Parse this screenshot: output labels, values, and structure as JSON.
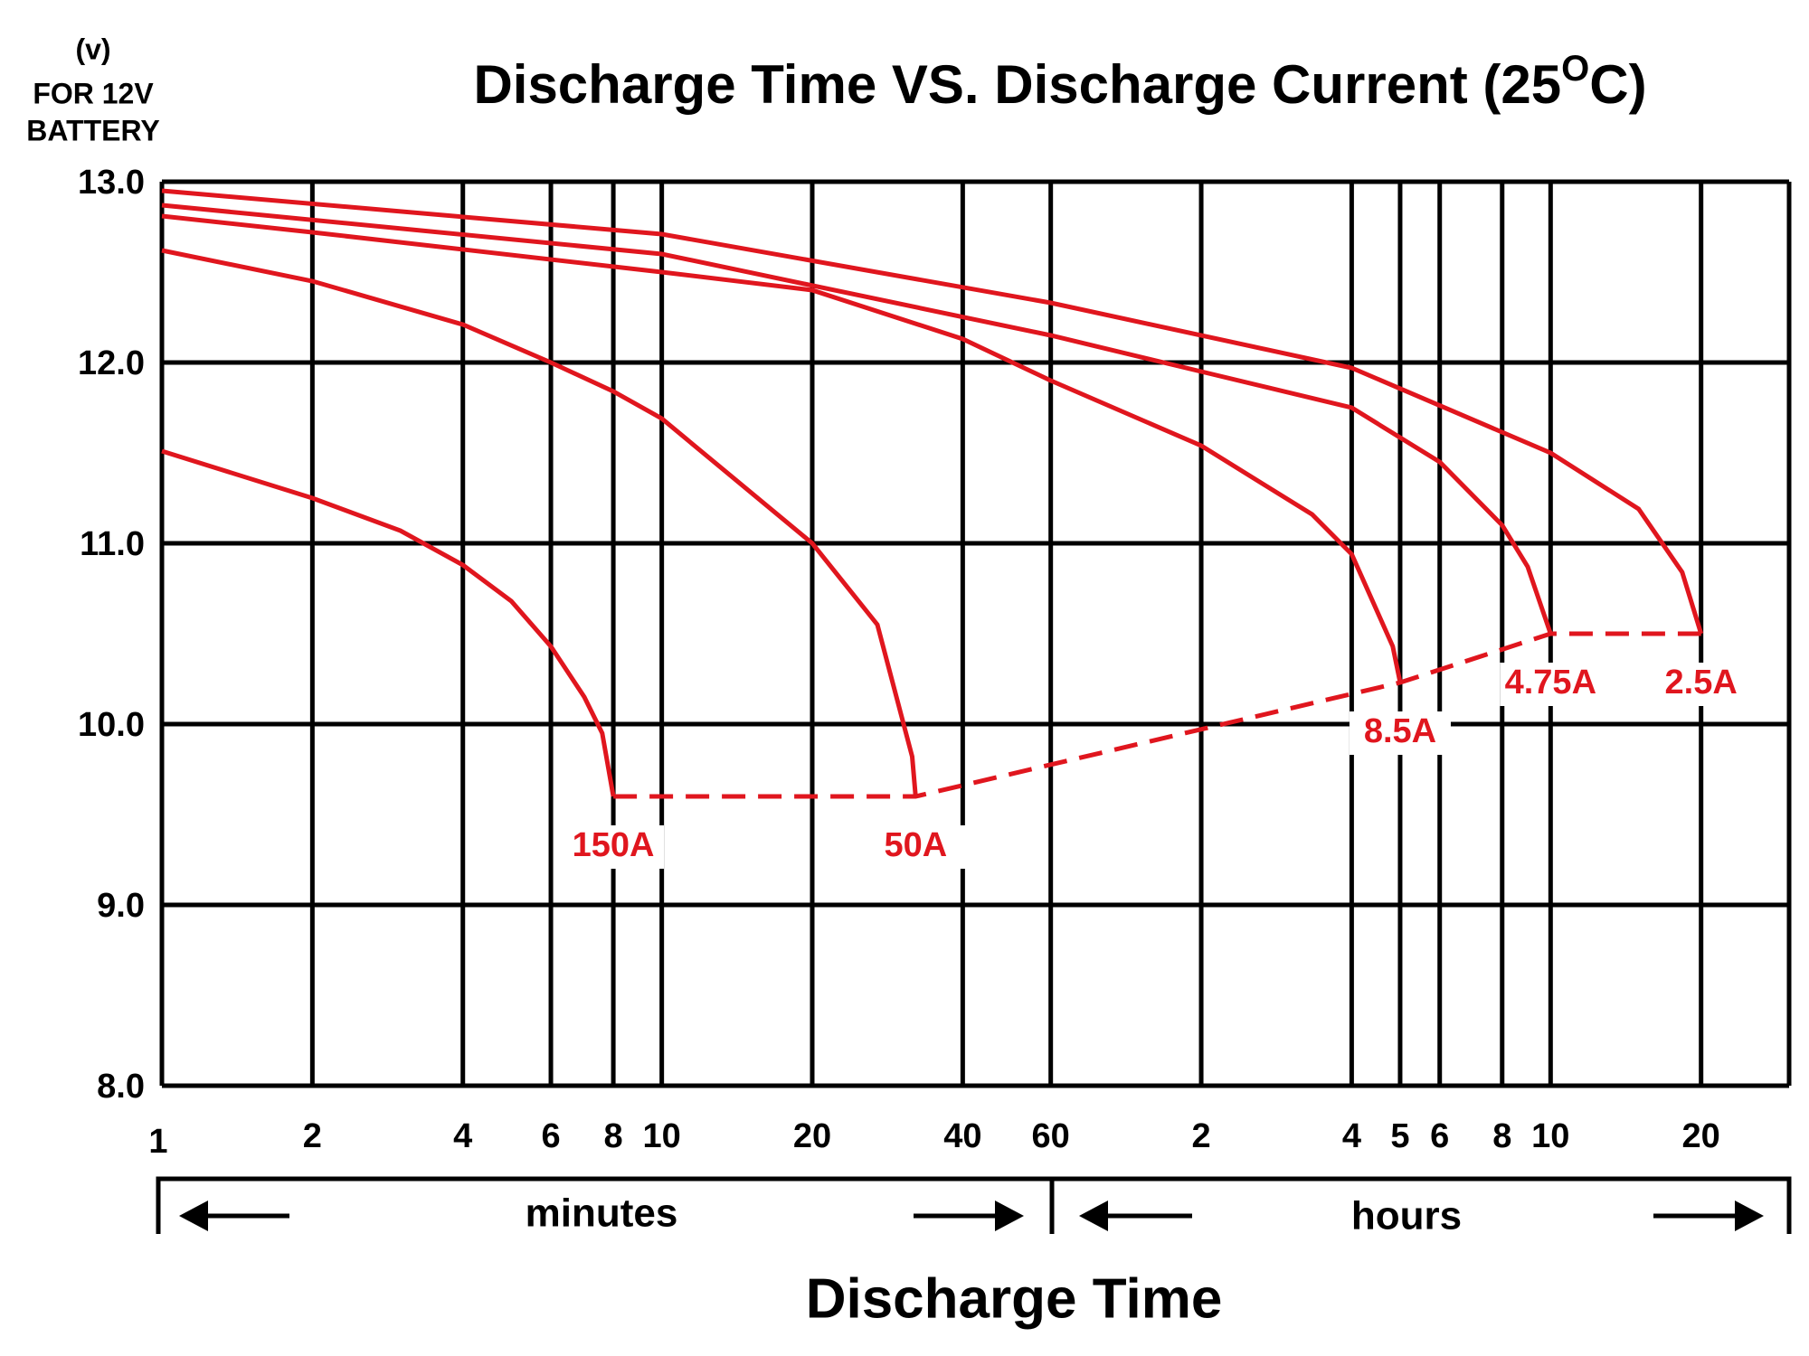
{
  "chart_data": {
    "type": "line",
    "title": [
      "Discharge Time VS. Discharge Current (25",
      "O",
      "C)"
    ],
    "y_label": [
      "(v)",
      "FOR 12V",
      "BATTERY"
    ],
    "x_label": "Discharge Time",
    "x_groups": [
      "minutes",
      "hours"
    ],
    "log_x": true,
    "grid": true,
    "xlim": [
      1,
      1800
    ],
    "ylim": [
      8,
      13
    ],
    "xticks": [
      1,
      2,
      4,
      6,
      8,
      10,
      20,
      40,
      60,
      {
        "value": 120,
        "label": "2"
      },
      {
        "value": 240,
        "label": "4"
      },
      {
        "value": 300,
        "label": "5"
      },
      {
        "value": 360,
        "label": "6"
      },
      {
        "value": 480,
        "label": "8"
      },
      {
        "value": 600,
        "label": "10"
      },
      {
        "value": 1200,
        "label": "20"
      }
    ],
    "yticks": [
      {
        "value": 8,
        "label": "8.0"
      },
      {
        "value": 9,
        "label": "9.0"
      },
      {
        "value": 10,
        "label": "10.0"
      },
      {
        "value": 11,
        "label": "11.0"
      },
      {
        "value": 12,
        "label": "12.0"
      },
      {
        "value": 13,
        "label": "13.0"
      }
    ],
    "series": [
      {
        "name": "150A",
        "color": "#e0161e",
        "x": [
          1,
          2,
          3,
          4,
          5,
          6,
          7,
          7.6,
          8
        ],
        "values": [
          11.51,
          11.25,
          11.07,
          10.88,
          10.68,
          10.43,
          10.15,
          9.95,
          9.6
        ]
      },
      {
        "name": "50A",
        "color": "#e0161e",
        "x": [
          1,
          2,
          4,
          6,
          8,
          10,
          20,
          27,
          31.7,
          32.2
        ],
        "values": [
          12.62,
          12.45,
          12.21,
          12.0,
          11.84,
          11.69,
          11.0,
          10.55,
          9.82,
          9.6
        ]
      },
      {
        "name": "8.5A",
        "color": "#e0161e",
        "x": [
          1,
          2,
          10,
          20,
          40,
          60,
          120,
          200,
          240,
          290,
          300
        ],
        "values": [
          12.81,
          12.72,
          12.5,
          12.4,
          12.13,
          11.9,
          11.54,
          11.16,
          10.94,
          10.43,
          10.23
        ]
      },
      {
        "name": "4.75A",
        "color": "#e0161e",
        "x": [
          1,
          10,
          60,
          120,
          240,
          360,
          480,
          540,
          600
        ],
        "values": [
          12.87,
          12.6,
          12.15,
          11.95,
          11.75,
          11.45,
          11.1,
          10.87,
          10.5
        ]
      },
      {
        "name": "2.5A",
        "color": "#e0161e",
        "x": [
          1,
          10,
          60,
          240,
          600,
          900,
          1100,
          1200
        ],
        "values": [
          12.95,
          12.71,
          12.33,
          11.97,
          11.5,
          11.19,
          10.84,
          10.5
        ]
      }
    ],
    "cutoff": {
      "color": "#e0161e",
      "x": [
        8,
        32.2,
        300,
        600,
        1200
      ],
      "values": [
        9.6,
        9.6,
        10.23,
        10.5,
        10.5
      ]
    }
  }
}
